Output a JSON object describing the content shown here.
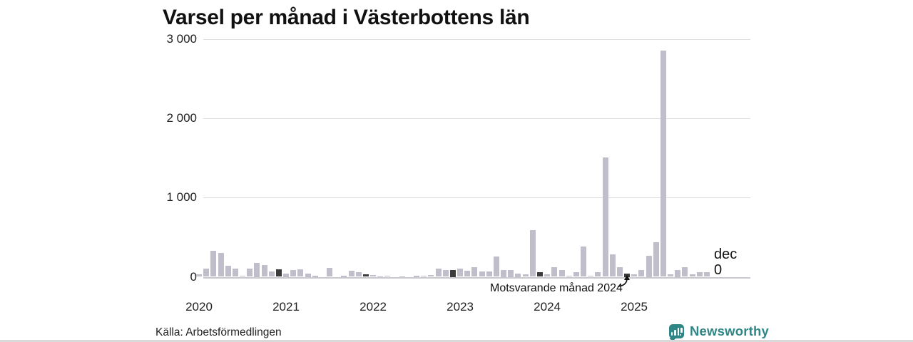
{
  "title": "Varsel per månad i Västerbottens län",
  "source": "Källa: Arbetsförmedlingen",
  "branding": {
    "name": "Newsworthy",
    "color": "#2e8786"
  },
  "annotation": {
    "text": "Motsvarande månad 2024"
  },
  "latest_label": {
    "month": "dec",
    "value": "0"
  },
  "chart_data": {
    "type": "bar",
    "title": "Varsel per månad i Västerbottens län",
    "x_start_month": "2020-01",
    "x_tick_labels": [
      "2020",
      "2021",
      "2022",
      "2023",
      "2024",
      "2025"
    ],
    "y_tick_labels": [
      "0",
      "1 000",
      "2 000",
      "3 000"
    ],
    "y_tick_values": [
      0,
      1000,
      2000,
      3000
    ],
    "ylim": [
      0,
      3000
    ],
    "grid": "horizontal",
    "values": [
      30,
      100,
      325,
      300,
      140,
      100,
      10,
      100,
      180,
      150,
      65,
      95,
      45,
      85,
      95,
      45,
      18,
      0,
      110,
      0,
      18,
      75,
      60,
      30,
      25,
      5,
      15,
      0,
      5,
      0,
      18,
      15,
      25,
      100,
      85,
      90,
      105,
      75,
      120,
      65,
      65,
      260,
      90,
      90,
      45,
      35,
      590,
      60,
      35,
      120,
      85,
      15,
      55,
      380,
      15,
      55,
      1510,
      285,
      120,
      45,
      30,
      85,
      270,
      435,
      2860,
      35,
      90,
      120,
      35,
      55,
      55,
      0
    ],
    "highlight_indices": [
      11,
      23,
      35,
      47,
      59
    ],
    "annotated_index": 59,
    "latest": {
      "label": "dec",
      "value": 0
    },
    "colors": {
      "bar": "#c1becb",
      "highlight": "#3b3b3b",
      "grid": "#dedede",
      "baseline": "#c9c9cf"
    }
  }
}
